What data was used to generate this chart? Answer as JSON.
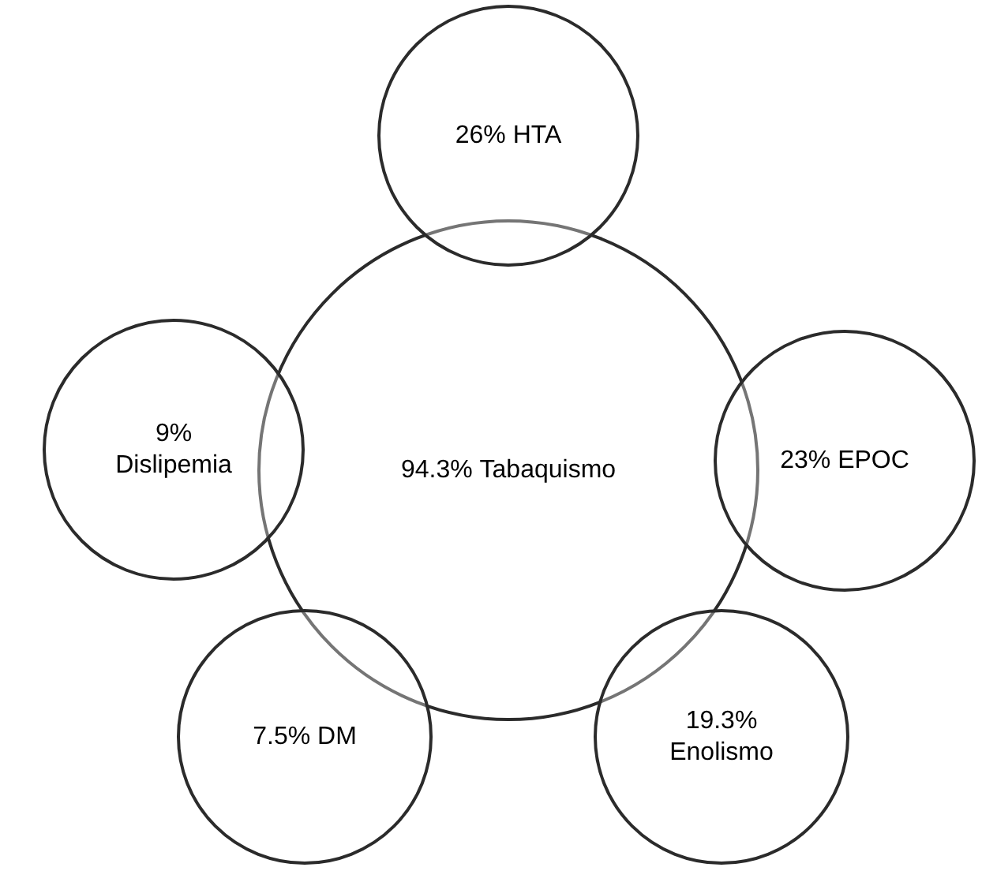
{
  "chart_data": {
    "type": "other",
    "categories": [
      "Tabaquismo",
      "HTA",
      "EPOC",
      "Enolismo",
      "DM",
      "Dislipemia"
    ],
    "values": [
      94.3,
      26,
      23,
      19.3,
      7.5,
      9
    ],
    "value_labels": [
      "94.3%",
      "26%",
      "23%",
      "19.3%",
      "7.5%",
      "9%"
    ]
  }
}
